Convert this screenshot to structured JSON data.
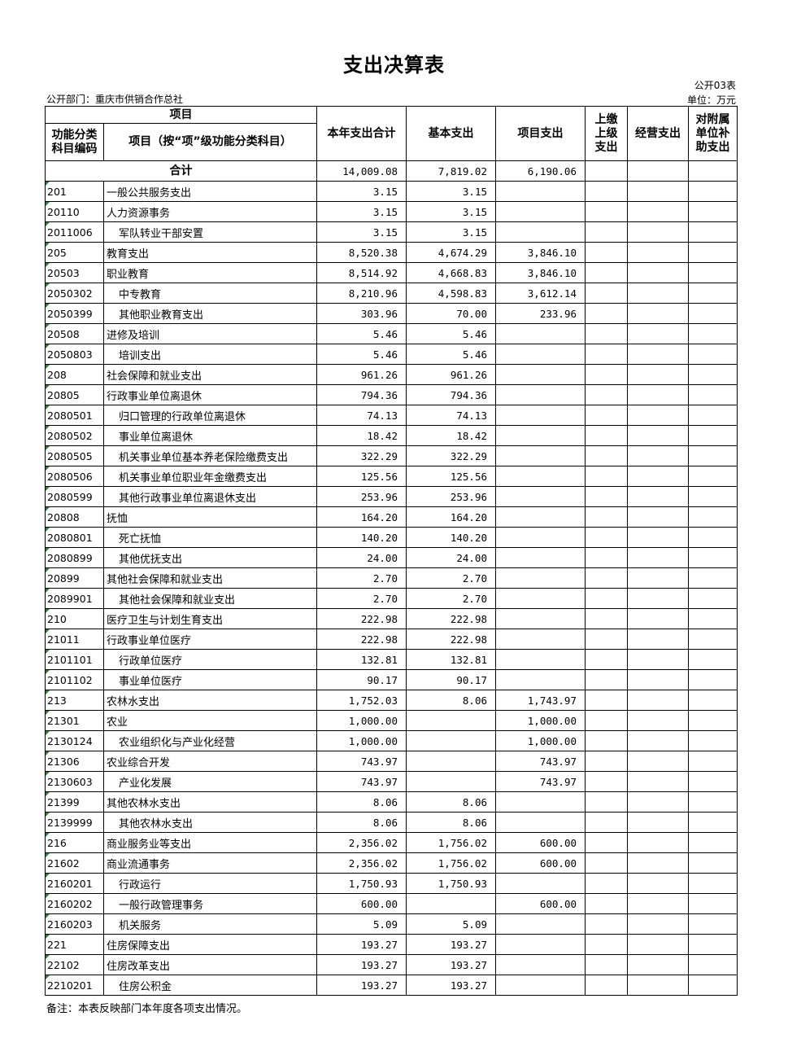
{
  "title": "支出决算表",
  "form_no": "公开03表",
  "unit": "单位：万元",
  "department": "公开部门：重庆市供销合作总社",
  "headers": {
    "item": "项目",
    "code": "功能分类科目编码",
    "name": "项目（按“项”级功能分类科目）",
    "total": "本年支出合计",
    "basic": "基本支出",
    "project": "项目支出",
    "upper": "上缴上级支出",
    "business": "经营支出",
    "subsidiary": "对附属单位补助支出"
  },
  "total_row": {
    "label": "合计",
    "total": "14,009.08",
    "basic": "7,819.02",
    "project": "6,190.06"
  },
  "rows": [
    [
      "201",
      "一般公共服务支出",
      0,
      "3.15",
      "3.15",
      ""
    ],
    [
      "20110",
      "人力资源事务",
      0,
      "3.15",
      "3.15",
      ""
    ],
    [
      "2011006",
      "军队转业干部安置",
      1,
      "3.15",
      "3.15",
      ""
    ],
    [
      "205",
      "教育支出",
      0,
      "8,520.38",
      "4,674.29",
      "3,846.10"
    ],
    [
      "20503",
      "职业教育",
      0,
      "8,514.92",
      "4,668.83",
      "3,846.10"
    ],
    [
      "2050302",
      "中专教育",
      1,
      "8,210.96",
      "4,598.83",
      "3,612.14"
    ],
    [
      "2050399",
      "其他职业教育支出",
      1,
      "303.96",
      "70.00",
      "233.96"
    ],
    [
      "20508",
      "进修及培训",
      0,
      "5.46",
      "5.46",
      ""
    ],
    [
      "2050803",
      "培训支出",
      1,
      "5.46",
      "5.46",
      ""
    ],
    [
      "208",
      "社会保障和就业支出",
      0,
      "961.26",
      "961.26",
      ""
    ],
    [
      "20805",
      "行政事业单位离退休",
      0,
      "794.36",
      "794.36",
      ""
    ],
    [
      "2080501",
      "归口管理的行政单位离退休",
      1,
      "74.13",
      "74.13",
      ""
    ],
    [
      "2080502",
      "事业单位离退休",
      1,
      "18.42",
      "18.42",
      ""
    ],
    [
      "2080505",
      "机关事业单位基本养老保险缴费支出",
      1,
      "322.29",
      "322.29",
      ""
    ],
    [
      "2080506",
      "机关事业单位职业年金缴费支出",
      1,
      "125.56",
      "125.56",
      ""
    ],
    [
      "2080599",
      "其他行政事业单位离退休支出",
      1,
      "253.96",
      "253.96",
      ""
    ],
    [
      "20808",
      "抚恤",
      0,
      "164.20",
      "164.20",
      ""
    ],
    [
      "2080801",
      "死亡抚恤",
      1,
      "140.20",
      "140.20",
      ""
    ],
    [
      "2080899",
      "其他优抚支出",
      1,
      "24.00",
      "24.00",
      ""
    ],
    [
      "20899",
      "其他社会保障和就业支出",
      0,
      "2.70",
      "2.70",
      ""
    ],
    [
      "2089901",
      "其他社会保障和就业支出",
      1,
      "2.70",
      "2.70",
      ""
    ],
    [
      "210",
      "医疗卫生与计划生育支出",
      0,
      "222.98",
      "222.98",
      ""
    ],
    [
      "21011",
      "行政事业单位医疗",
      0,
      "222.98",
      "222.98",
      ""
    ],
    [
      "2101101",
      "行政单位医疗",
      1,
      "132.81",
      "132.81",
      ""
    ],
    [
      "2101102",
      "事业单位医疗",
      1,
      "90.17",
      "90.17",
      ""
    ],
    [
      "213",
      "农林水支出",
      0,
      "1,752.03",
      "8.06",
      "1,743.97"
    ],
    [
      "21301",
      "农业",
      0,
      "1,000.00",
      "",
      "1,000.00"
    ],
    [
      "2130124",
      "农业组织化与产业化经营",
      1,
      "1,000.00",
      "",
      "1,000.00"
    ],
    [
      "21306",
      "农业综合开发",
      0,
      "743.97",
      "",
      "743.97"
    ],
    [
      "2130603",
      "产业化发展",
      1,
      "743.97",
      "",
      "743.97"
    ],
    [
      "21399",
      "其他农林水支出",
      0,
      "8.06",
      "8.06",
      ""
    ],
    [
      "2139999",
      "其他农林水支出",
      1,
      "8.06",
      "8.06",
      ""
    ],
    [
      "216",
      "商业服务业等支出",
      0,
      "2,356.02",
      "1,756.02",
      "600.00"
    ],
    [
      "21602",
      "商业流通事务",
      0,
      "2,356.02",
      "1,756.02",
      "600.00"
    ],
    [
      "2160201",
      "行政运行",
      1,
      "1,750.93",
      "1,750.93",
      ""
    ],
    [
      "2160202",
      "一般行政管理事务",
      1,
      "600.00",
      "",
      "600.00"
    ],
    [
      "2160203",
      "机关服务",
      1,
      "5.09",
      "5.09",
      ""
    ],
    [
      "221",
      "住房保障支出",
      0,
      "193.27",
      "193.27",
      ""
    ],
    [
      "22102",
      "住房改革支出",
      0,
      "193.27",
      "193.27",
      ""
    ],
    [
      "2210201",
      "住房公积金",
      1,
      "193.27",
      "193.27",
      ""
    ]
  ],
  "note": "备注：本表反映部门本年度各项支出情况。"
}
